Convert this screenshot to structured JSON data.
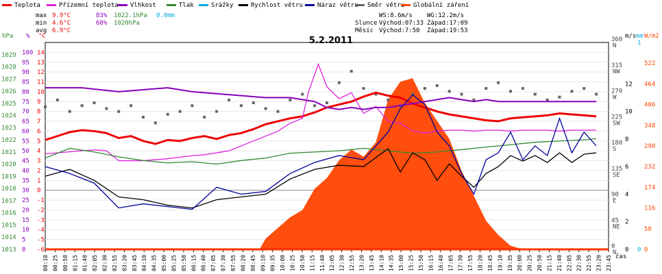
{
  "legend": [
    {
      "label": "Teplota",
      "color": "#ee0000"
    },
    {
      "label": "Přízemní teplota",
      "color": "#dd22dd"
    },
    {
      "label": "Vlhkost",
      "color": "#8800bb"
    },
    {
      "label": "Tlak",
      "color": "#338833"
    },
    {
      "label": "Srážky",
      "color": "#00aadd"
    },
    {
      "label": "Rychlost větru",
      "color": "#000000"
    },
    {
      "label": "Náraz větru",
      "color": "#000099"
    },
    {
      "label": "Směr větru",
      "color": "#666666"
    },
    {
      "label": "Globální záření",
      "color": "#ff4400"
    }
  ],
  "stats": {
    "max_label": "max",
    "max_temp": "9.9°C",
    "max_hum": "83%",
    "max_pres": "1022.1hPa",
    "max_rain": "0.0mm",
    "min_label": "min",
    "min_temp": "4.6°C",
    "min_hum": "68%",
    "min_pres": "1020hPa",
    "avg_label": "avg",
    "avg_temp": "6.9°C"
  },
  "wind_info": {
    "ws": "WS:8.6m/s",
    "wg": "WG:12.2m/s"
  },
  "sun": {
    "label": "Slunce",
    "rise": "Východ:07:33",
    "set": "Západ:17:09"
  },
  "moon": {
    "label": "Měsíc",
    "rise": "Východ:7:50",
    "set": "Západ:19:53"
  },
  "units": {
    "hpa": "hPa",
    "pct": "%",
    "degc": "°C",
    "ms": "m/s",
    "mm": "mm",
    "wm2": "W/m2",
    "time": "čas"
  },
  "chart_data": {
    "type": "line",
    "title": "5.2.2011",
    "x_ticks": [
      "00:10",
      "00:25",
      "00:50",
      "01:15",
      "01:40",
      "02:05",
      "02:30",
      "02:55",
      "03:20",
      "03:45",
      "04:10",
      "04:35",
      "05:00",
      "05:25",
      "05:50",
      "06:15",
      "06:40",
      "07:05",
      "07:30",
      "07:55",
      "08:20",
      "08:45",
      "09:10",
      "09:35",
      "10:00",
      "10:25",
      "10:50",
      "11:15",
      "11:40",
      "12:05",
      "12:30",
      "12:55",
      "13:20",
      "13:45",
      "14:10",
      "14:35",
      "15:00",
      "15:25",
      "15:50",
      "16:15",
      "16:40",
      "17:05",
      "17:30",
      "17:55",
      "18:20",
      "18:45",
      "19:10",
      "19:35",
      "20:00",
      "20:25",
      "20:50",
      "21:15",
      "21:40",
      "22:05",
      "22:30",
      "22:55",
      "23:20",
      "23:45"
    ],
    "temp_axis": {
      "ticks": [
        -6,
        -5,
        -4,
        -3,
        -2,
        -1,
        0,
        1,
        2,
        3,
        4,
        5,
        6,
        7,
        8,
        9,
        10,
        11,
        12,
        13,
        14
      ],
      "range": [
        -6,
        15
      ]
    },
    "pressure_axis": {
      "ticks": [
        1013,
        1014,
        1015,
        1016,
        1017,
        1018,
        1019,
        1020,
        1021,
        1022,
        1023,
        1024,
        1025,
        1026,
        1027,
        1028,
        1029
      ],
      "range": [
        1013,
        1030
      ]
    },
    "humidity_axis": {
      "ticks": [
        0,
        5,
        10,
        15,
        20,
        25,
        30,
        35,
        40,
        45,
        50,
        55,
        60,
        65,
        70,
        75,
        80,
        85,
        90,
        95,
        100
      ],
      "range": [
        0,
        105
      ]
    },
    "direction_axis": {
      "ticks": [
        "0",
        "45",
        "90",
        "135",
        "180",
        "225",
        "270",
        "315",
        "360"
      ],
      "labels": [
        "N",
        "NE",
        "E",
        "SE",
        "S",
        "SW",
        "W",
        "NW",
        "N"
      ],
      "range": [
        0,
        360
      ]
    },
    "wind_axis": {
      "ticks": [
        0,
        2,
        4,
        6,
        8,
        10,
        12
      ],
      "range": [
        0,
        15
      ]
    },
    "rain_axis": {
      "ticks": [
        0,
        1
      ],
      "range": [
        0,
        1
      ]
    },
    "radiation_axis": {
      "ticks": [
        0,
        58,
        116,
        174,
        232,
        290,
        348,
        406,
        464,
        522
      ],
      "range": [
        0,
        580
      ]
    },
    "series": [
      {
        "name": "Teplota",
        "color": "#ee0000",
        "axis": "temp",
        "points": [
          [
            0,
            5.1
          ],
          [
            1,
            5.5
          ],
          [
            2,
            5.9
          ],
          [
            3,
            6.1
          ],
          [
            4,
            6.0
          ],
          [
            5,
            5.8
          ],
          [
            6,
            5.3
          ],
          [
            7,
            5.5
          ],
          [
            8,
            5.0
          ],
          [
            9,
            4.7
          ],
          [
            10,
            5.1
          ],
          [
            11,
            5.0
          ],
          [
            12,
            5.3
          ],
          [
            13,
            5.5
          ],
          [
            14,
            5.2
          ],
          [
            15,
            5.6
          ],
          [
            16,
            5.8
          ],
          [
            17,
            6.2
          ],
          [
            18,
            6.7
          ],
          [
            19,
            7.0
          ],
          [
            20,
            7.3
          ],
          [
            21,
            7.5
          ],
          [
            22,
            7.9
          ],
          [
            23,
            8.4
          ],
          [
            24,
            8.7
          ],
          [
            25,
            9.0
          ],
          [
            26,
            9.5
          ],
          [
            27,
            9.9
          ],
          [
            28,
            9.6
          ],
          [
            29,
            9.4
          ],
          [
            30,
            8.8
          ],
          [
            31,
            8.4
          ],
          [
            32,
            8.0
          ],
          [
            33,
            7.7
          ],
          [
            34,
            7.5
          ],
          [
            35,
            7.3
          ],
          [
            36,
            7.1
          ],
          [
            37,
            7.0
          ],
          [
            38,
            7.3
          ],
          [
            39,
            7.4
          ],
          [
            40,
            7.5
          ],
          [
            41,
            7.6
          ],
          [
            42,
            7.8
          ],
          [
            43,
            7.7
          ],
          [
            44,
            7.6
          ],
          [
            45,
            7.5
          ]
        ]
      },
      {
        "name": "Přízemní teplota",
        "color": "#dd22dd",
        "axis": "temp",
        "points": [
          [
            0,
            3.7
          ],
          [
            2,
            3.9
          ],
          [
            4,
            4.1
          ],
          [
            5,
            4.0
          ],
          [
            6,
            3.0
          ],
          [
            8,
            3.0
          ],
          [
            10,
            3.2
          ],
          [
            12,
            3.5
          ],
          [
            13,
            3.6
          ],
          [
            15,
            4.0
          ],
          [
            17,
            5.0
          ],
          [
            19,
            6.0
          ],
          [
            20,
            6.8
          ],
          [
            21,
            7.3
          ],
          [
            21.5,
            10.0
          ],
          [
            22.3,
            12.8
          ],
          [
            23,
            10.5
          ],
          [
            24,
            9.3
          ],
          [
            25,
            9.9
          ],
          [
            26,
            7.8
          ],
          [
            27,
            8.5
          ],
          [
            28,
            7.0
          ],
          [
            29,
            6.8
          ],
          [
            30,
            6.0
          ],
          [
            31,
            5.8
          ],
          [
            32,
            6.0
          ],
          [
            33,
            6.1
          ],
          [
            34,
            6.1
          ],
          [
            35,
            6.0
          ],
          [
            36,
            6.1
          ],
          [
            37,
            6.1
          ],
          [
            38,
            6.0
          ],
          [
            39,
            6.1
          ],
          [
            40,
            6.1
          ],
          [
            41,
            6.1
          ],
          [
            42,
            6.0
          ],
          [
            43,
            6.1
          ],
          [
            44,
            6.1
          ],
          [
            45,
            6.1
          ]
        ]
      },
      {
        "name": "Vlhkost",
        "color": "#8800bb",
        "axis": "humidity",
        "points": [
          [
            0,
            82
          ],
          [
            3,
            82
          ],
          [
            6,
            80
          ],
          [
            8,
            81
          ],
          [
            10,
            82
          ],
          [
            12,
            80
          ],
          [
            14,
            79
          ],
          [
            16,
            78
          ],
          [
            18,
            77
          ],
          [
            20,
            77
          ],
          [
            22,
            75
          ],
          [
            23,
            72
          ],
          [
            24,
            71
          ],
          [
            25,
            72
          ],
          [
            26,
            71
          ],
          [
            27,
            72
          ],
          [
            28,
            72
          ],
          [
            29,
            73
          ],
          [
            30,
            74
          ],
          [
            31,
            75
          ],
          [
            32,
            76
          ],
          [
            33,
            77
          ],
          [
            34,
            76
          ],
          [
            35,
            75
          ],
          [
            36,
            76
          ],
          [
            37,
            75
          ],
          [
            38,
            75
          ],
          [
            39,
            75
          ],
          [
            40,
            75
          ],
          [
            41,
            75
          ],
          [
            42,
            75
          ],
          [
            43,
            75
          ],
          [
            44,
            75
          ],
          [
            45,
            75
          ]
        ]
      },
      {
        "name": "Tlak",
        "color": "#338833",
        "axis": "pressure",
        "points": [
          [
            0,
            1020.5
          ],
          [
            2,
            1021.3
          ],
          [
            4,
            1021.0
          ],
          [
            6,
            1020.6
          ],
          [
            8,
            1020.3
          ],
          [
            10,
            1020.1
          ],
          [
            12,
            1020.2
          ],
          [
            14,
            1020.0
          ],
          [
            16,
            1020.3
          ],
          [
            18,
            1020.5
          ],
          [
            20,
            1020.9
          ],
          [
            22,
            1021.0
          ],
          [
            24,
            1021.1
          ],
          [
            26,
            1021.3
          ],
          [
            28,
            1021.1
          ],
          [
            30,
            1020.9
          ],
          [
            32,
            1021.0
          ],
          [
            34,
            1021.2
          ],
          [
            36,
            1021.4
          ],
          [
            38,
            1021.6
          ],
          [
            40,
            1021.8
          ],
          [
            42,
            1021.9
          ],
          [
            44,
            1022.0
          ],
          [
            45,
            1022.1
          ]
        ]
      },
      {
        "name": "Rychlost větru",
        "color": "#000000",
        "axis": "wind",
        "points": [
          [
            0,
            5.3
          ],
          [
            2,
            5.8
          ],
          [
            4,
            5.0
          ],
          [
            6,
            3.8
          ],
          [
            8,
            3.6
          ],
          [
            10,
            3.2
          ],
          [
            12,
            3.0
          ],
          [
            14,
            3.6
          ],
          [
            16,
            3.8
          ],
          [
            18,
            4.0
          ],
          [
            20,
            5.1
          ],
          [
            22,
            5.8
          ],
          [
            24,
            6.1
          ],
          [
            26,
            6.0
          ],
          [
            28,
            7.3
          ],
          [
            29,
            5.6
          ],
          [
            30,
            7.0
          ],
          [
            31,
            6.5
          ],
          [
            32,
            5.0
          ],
          [
            33,
            6.2
          ],
          [
            34,
            5.3
          ],
          [
            35,
            4.5
          ],
          [
            36,
            5.5
          ],
          [
            37,
            6.0
          ],
          [
            38,
            6.8
          ],
          [
            39,
            6.4
          ],
          [
            40,
            6.8
          ],
          [
            41,
            6.3
          ],
          [
            42,
            7.0
          ],
          [
            43,
            6.3
          ],
          [
            44,
            6.9
          ],
          [
            45,
            7.0
          ]
        ]
      },
      {
        "name": "Náraz větru",
        "color": "#000099",
        "axis": "wind",
        "points": [
          [
            0,
            6.0
          ],
          [
            2,
            5.5
          ],
          [
            4,
            4.8
          ],
          [
            6,
            3.0
          ],
          [
            8,
            3.3
          ],
          [
            10,
            3.1
          ],
          [
            12,
            2.9
          ],
          [
            14,
            4.5
          ],
          [
            16,
            4.0
          ],
          [
            18,
            4.2
          ],
          [
            20,
            5.5
          ],
          [
            22,
            6.3
          ],
          [
            24,
            6.8
          ],
          [
            26,
            6.5
          ],
          [
            28,
            8.5
          ],
          [
            29,
            10.2
          ],
          [
            30,
            11.2
          ],
          [
            31,
            10.5
          ],
          [
            32,
            8.5
          ],
          [
            33,
            7.5
          ],
          [
            34,
            5.5
          ],
          [
            35,
            4.0
          ],
          [
            36,
            6.5
          ],
          [
            37,
            7.0
          ],
          [
            38,
            8.5
          ],
          [
            39,
            6.5
          ],
          [
            40,
            7.5
          ],
          [
            41,
            6.8
          ],
          [
            42,
            9.5
          ],
          [
            43,
            7.0
          ],
          [
            44,
            8.5
          ],
          [
            45,
            7.5
          ]
        ]
      },
      {
        "name": "Globální záření",
        "color": "#ff4400",
        "axis": "radiation",
        "points": [
          [
            17.5,
            0
          ],
          [
            18,
            30
          ],
          [
            19,
            60
          ],
          [
            20,
            90
          ],
          [
            21,
            110
          ],
          [
            22,
            170
          ],
          [
            23,
            200
          ],
          [
            24,
            250
          ],
          [
            25,
            280
          ],
          [
            26,
            260
          ],
          [
            27,
            300
          ],
          [
            28,
            420
          ],
          [
            29,
            470
          ],
          [
            30,
            480
          ],
          [
            31,
            410
          ],
          [
            32,
            360
          ],
          [
            33,
            310
          ],
          [
            34,
            220
          ],
          [
            35,
            150
          ],
          [
            36,
            80
          ],
          [
            37,
            40
          ],
          [
            38,
            10
          ],
          [
            39,
            0
          ]
        ]
      }
    ],
    "wind_direction": {
      "color": "#666666",
      "values": [
        248,
        260,
        240,
        250,
        255,
        245,
        240,
        250,
        230,
        220,
        235,
        240,
        250,
        230,
        240,
        260,
        250,
        255,
        245,
        240,
        260,
        270,
        250,
        255,
        290,
        310,
        280,
        270,
        260,
        250,
        270,
        280,
        285,
        275,
        270,
        260,
        280,
        290,
        275,
        280,
        270,
        260,
        265,
        275,
        280,
        270
      ]
    }
  }
}
